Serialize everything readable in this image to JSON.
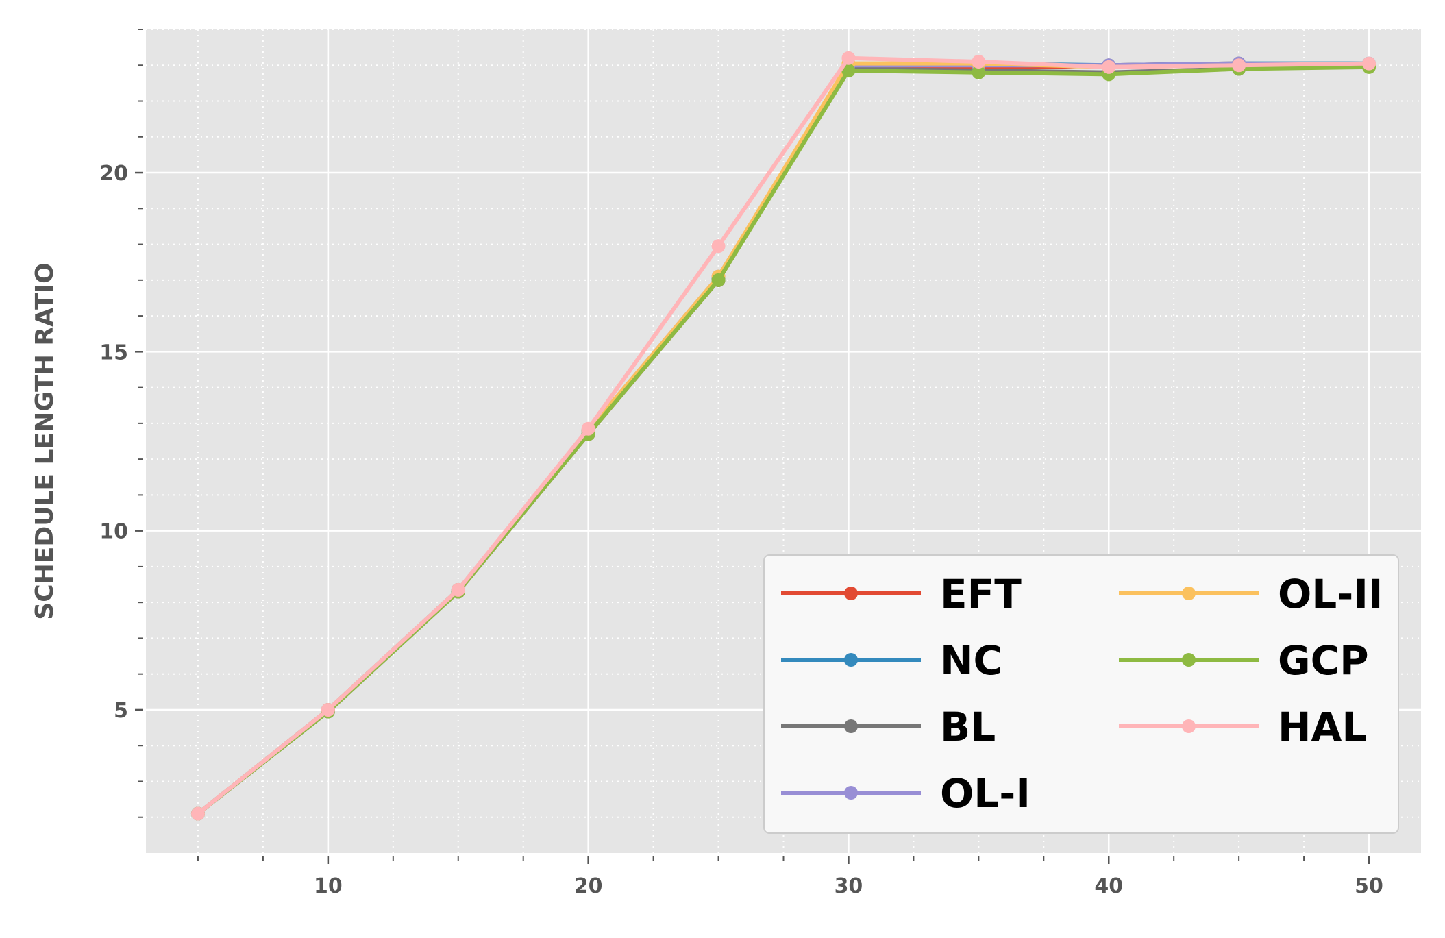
{
  "chart_data": {
    "type": "line",
    "title": "",
    "xlabel": "",
    "ylabel": "SCHEDULE LENGTH RATIO",
    "xlim": [
      3,
      52
    ],
    "ylim": [
      1,
      24
    ],
    "x_ticks": [
      10,
      20,
      30,
      40,
      50
    ],
    "y_ticks": [
      5,
      10,
      15,
      20
    ],
    "grid": "major solid white, minor dotted white",
    "background": "#e5e5e5",
    "legend_position": "lower-right",
    "legend_columns": 2,
    "x": [
      5,
      10,
      15,
      20,
      25,
      30,
      35,
      40,
      45,
      50
    ],
    "series": [
      {
        "name": "EFT",
        "color": "#E24A33",
        "values": [
          2.1,
          5.0,
          8.3,
          12.7,
          17.0,
          22.9,
          22.9,
          23.0,
          23.05,
          23.0
        ]
      },
      {
        "name": "NC",
        "color": "#348ABD",
        "values": [
          2.1,
          5.0,
          8.35,
          12.8,
          17.05,
          23.0,
          23.05,
          23.0,
          23.05,
          23.05
        ]
      },
      {
        "name": "BL",
        "color": "#777777",
        "values": [
          2.1,
          4.95,
          8.3,
          12.7,
          17.0,
          22.9,
          22.85,
          22.8,
          22.9,
          23.0
        ]
      },
      {
        "name": "OL-I",
        "color": "#988ED5",
        "values": [
          2.1,
          5.0,
          8.35,
          12.8,
          17.1,
          23.0,
          23.0,
          23.0,
          23.05,
          23.0
        ]
      },
      {
        "name": "OL-II",
        "color": "#FBC15E",
        "values": [
          2.1,
          5.0,
          8.35,
          12.8,
          17.1,
          23.05,
          23.05,
          22.95,
          23.0,
          23.0
        ]
      },
      {
        "name": "GCP",
        "color": "#8EBA42",
        "values": [
          2.1,
          4.95,
          8.3,
          12.7,
          17.0,
          22.85,
          22.8,
          22.75,
          22.9,
          22.95
        ]
      },
      {
        "name": "HAL",
        "color": "#FFB5B8",
        "values": [
          2.1,
          5.0,
          8.35,
          12.85,
          17.95,
          23.2,
          23.1,
          22.95,
          23.0,
          23.05
        ]
      }
    ]
  }
}
